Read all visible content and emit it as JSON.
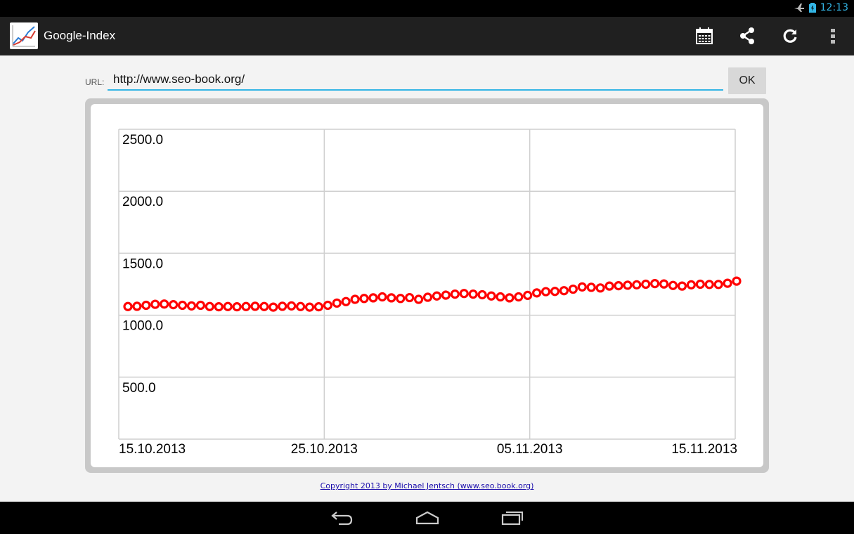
{
  "status_bar": {
    "time": "12:13",
    "icons": [
      "airplane-icon",
      "battery-icon"
    ]
  },
  "action_bar": {
    "title": "Google-Index",
    "actions": [
      "calendar-icon",
      "share-icon",
      "refresh-icon",
      "overflow-menu-icon"
    ]
  },
  "url_form": {
    "label": "URL:",
    "value": "http://www.seo-book.org/",
    "ok_label": "OK"
  },
  "chart_data": {
    "type": "scatter",
    "ylim": [
      0,
      2500
    ],
    "y_ticks": [
      "2500.0",
      "2000.0",
      "1500.0",
      "1000.0",
      "500.0"
    ],
    "x_tick_labels": [
      "15.10.2013",
      "25.10.2013",
      "05.11.2013",
      "15.11.2013"
    ],
    "grid": true,
    "marker_color": "#ff0000",
    "series": [
      {
        "values": [
          1070,
          1072,
          1080,
          1088,
          1090,
          1085,
          1080,
          1075,
          1080,
          1070,
          1068,
          1070,
          1068,
          1070,
          1072,
          1070,
          1065,
          1072,
          1075,
          1070,
          1065,
          1068,
          1080,
          1098,
          1110,
          1128,
          1135,
          1140,
          1148,
          1140,
          1135,
          1142,
          1128,
          1145,
          1155,
          1162,
          1170,
          1175,
          1170,
          1165,
          1155,
          1148,
          1140,
          1148,
          1160,
          1180,
          1190,
          1192,
          1198,
          1210,
          1228,
          1225,
          1220,
          1235,
          1238,
          1242,
          1245,
          1250,
          1255,
          1252,
          1240,
          1235,
          1245,
          1250,
          1248,
          1248,
          1258,
          1275
        ]
      }
    ]
  },
  "footer": {
    "copyright": "Copyright 2013 by Michael Jentsch (www.seo.book.org)"
  },
  "nav_bar": {
    "buttons": [
      "back-icon",
      "home-icon",
      "recents-icon"
    ]
  }
}
